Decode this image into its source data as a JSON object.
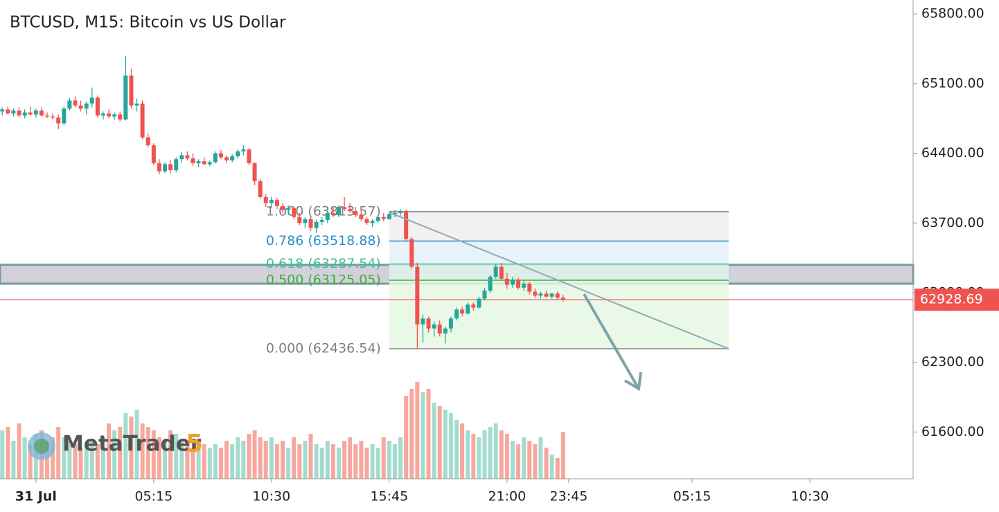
{
  "chart_data": {
    "type": "candlestick",
    "title": "BTCUSD, M15: Bitcoin vs US Dollar",
    "x": [
      -1.5,
      -1.25,
      -1,
      -0.75,
      -0.5,
      -0.25,
      0,
      0.25,
      0.5,
      0.75,
      1,
      1.25,
      1.5,
      1.75,
      2,
      2.25,
      2.5,
      2.75,
      3,
      3.25,
      3.5,
      3.75,
      4,
      4.25,
      4.5,
      4.75,
      5,
      5.25,
      5.5,
      5.75,
      6,
      6.25,
      6.5,
      6.75,
      7,
      7.25,
      7.5,
      7.75,
      8,
      8.25,
      8.5,
      8.75,
      9,
      9.25,
      9.5,
      9.75,
      10,
      10.25,
      10.5,
      10.75,
      11,
      11.25,
      11.5,
      11.75,
      12,
      12.25,
      12.5,
      12.75,
      13,
      13.25,
      13.5,
      13.75,
      14,
      14.25,
      14.5,
      14.75,
      15,
      15.25,
      15.5,
      15.75,
      16,
      16.25,
      16.5,
      16.75,
      17,
      17.25,
      17.5,
      17.75,
      18,
      18.25,
      18.5,
      18.75,
      19,
      19.25,
      19.5,
      19.75,
      20,
      20.25,
      20.5,
      20.75,
      21,
      21.25,
      21.5,
      21.75,
      22,
      22.25,
      22.5,
      22.75,
      23,
      23.25,
      23.5
    ],
    "open": [
      64820,
      64840,
      64800,
      64830,
      64780,
      64810,
      64790,
      64830,
      64780,
      64770,
      64760,
      64700,
      64850,
      64930,
      64880,
      64850,
      64900,
      64960,
      64780,
      64800,
      64770,
      64790,
      64740,
      65180,
      64880,
      64900,
      64560,
      64480,
      64300,
      64220,
      64290,
      64230,
      64340,
      64380,
      64350,
      64300,
      64320,
      64290,
      64310,
      64400,
      64360,
      64330,
      64370,
      64420,
      64440,
      64300,
      64120,
      63960,
      63900,
      63930,
      63870,
      63830,
      63850,
      63760,
      63700,
      63740,
      63650,
      63710,
      63730,
      63800,
      63780,
      63860,
      63840,
      63820,
      63780,
      63740,
      63700,
      63720,
      63760,
      63740,
      63790,
      63800,
      63820,
      63540,
      63260,
      62680,
      62740,
      62640,
      62680,
      62590,
      62640,
      62740,
      62830,
      62790,
      62880,
      62850,
      62940,
      63020,
      63160,
      63260,
      63140,
      63080,
      63130,
      63050,
      63090,
      63010,
      62970,
      62990,
      62960,
      62990,
      62950
    ],
    "high": [
      64860,
      64870,
      64850,
      64860,
      64840,
      64870,
      64850,
      64860,
      64810,
      64800,
      64790,
      64870,
      64960,
      64970,
      64930,
      64920,
      65060,
      64980,
      64820,
      64840,
      64810,
      64820,
      65380,
      65250,
      64950,
      64930,
      64600,
      64500,
      64340,
      64310,
      64330,
      64360,
      64410,
      64420,
      64400,
      64340,
      64360,
      64330,
      64420,
      64430,
      64380,
      64390,
      64440,
      64480,
      64450,
      64310,
      64140,
      63990,
      63960,
      63950,
      63900,
      63880,
      63870,
      63800,
      63760,
      63770,
      63730,
      63760,
      63820,
      63860,
      63880,
      63960,
      63900,
      63860,
      63830,
      63760,
      63740,
      63780,
      63800,
      63810,
      63830,
      63840,
      63830,
      63560,
      63300,
      62780,
      62760,
      62710,
      62720,
      62660,
      62760,
      62850,
      62860,
      62900,
      62900,
      62960,
      63050,
      63180,
      63290,
      63300,
      63200,
      63160,
      63150,
      63120,
      63110,
      63040,
      63010,
      63020,
      63000,
      63010,
      62980
    ],
    "low": [
      64780,
      64790,
      64770,
      64760,
      64750,
      64780,
      64760,
      64770,
      64750,
      64740,
      64640,
      64680,
      64830,
      64860,
      64820,
      64790,
      64860,
      64760,
      64740,
      64750,
      64740,
      64720,
      64730,
      64850,
      64820,
      64540,
      64460,
      64280,
      64190,
      64200,
      64200,
      64210,
      64300,
      64330,
      64270,
      64260,
      64280,
      64270,
      64300,
      64340,
      64300,
      64310,
      64350,
      64380,
      64280,
      64080,
      63940,
      63860,
      63850,
      63840,
      63800,
      63780,
      63740,
      63680,
      63650,
      63620,
      63600,
      63680,
      63700,
      63760,
      63760,
      63820,
      63800,
      63760,
      63720,
      63680,
      63660,
      63700,
      63720,
      63730,
      63760,
      63770,
      63520,
      63240,
      62436,
      62500,
      62600,
      62560,
      62560,
      62490,
      62600,
      62720,
      62760,
      62780,
      62820,
      62840,
      62920,
      63000,
      63140,
      63120,
      63040,
      63050,
      63030,
      63020,
      62980,
      62950,
      62940,
      62950,
      62940,
      62930,
      62910
    ],
    "close": [
      64840,
      64800,
      64830,
      64780,
      64810,
      64790,
      64830,
      64780,
      64770,
      64760,
      64700,
      64850,
      64930,
      64880,
      64850,
      64900,
      64960,
      64780,
      64800,
      64770,
      64790,
      64740,
      65180,
      64880,
      64900,
      64560,
      64480,
      64300,
      64220,
      64290,
      64230,
      64340,
      64380,
      64350,
      64300,
      64320,
      64290,
      64310,
      64400,
      64360,
      64330,
      64370,
      64420,
      64440,
      64300,
      64120,
      63960,
      63900,
      63930,
      63870,
      63830,
      63850,
      63760,
      63700,
      63740,
      63650,
      63710,
      63730,
      63800,
      63780,
      63860,
      63840,
      63820,
      63780,
      63740,
      63700,
      63720,
      63760,
      63740,
      63790,
      63800,
      63820,
      63540,
      63260,
      62680,
      62740,
      62640,
      62680,
      62590,
      62640,
      62740,
      62830,
      62790,
      62880,
      62850,
      62940,
      63020,
      63160,
      63260,
      63140,
      63080,
      63130,
      63050,
      63090,
      63010,
      62970,
      62990,
      62960,
      62990,
      62950,
      62928.69
    ],
    "volume": [
      70,
      75,
      55,
      80,
      60,
      50,
      65,
      70,
      55,
      60,
      75,
      60,
      55,
      50,
      45,
      50,
      55,
      50,
      60,
      80,
      70,
      75,
      95,
      90,
      100,
      80,
      75,
      70,
      60,
      55,
      70,
      65,
      55,
      50,
      45,
      55,
      50,
      45,
      50,
      45,
      55,
      50,
      60,
      55,
      65,
      70,
      60,
      55,
      60,
      50,
      55,
      45,
      60,
      50,
      55,
      65,
      50,
      45,
      55,
      50,
      45,
      55,
      60,
      50,
      55,
      45,
      50,
      45,
      60,
      55,
      50,
      60,
      120,
      130,
      140,
      125,
      130,
      110,
      105,
      100,
      95,
      85,
      80,
      70,
      65,
      60,
      70,
      75,
      80,
      70,
      65,
      55,
      50,
      60,
      55,
      50,
      60,
      45,
      35,
      30,
      68
    ],
    "up_color": "#26a69a",
    "down_color": "#ef5350",
    "up_volume_color": "#a3dcce",
    "down_volume_color": "#f7a89e",
    "xlim": [
      -1.6,
      39.1
    ],
    "xticks": [
      {
        "value": 0,
        "label": "31 Jul"
      },
      {
        "value": 5.25,
        "label": "05:15"
      },
      {
        "value": 10.5,
        "label": "10:30"
      },
      {
        "value": 15.75,
        "label": "15:45"
      },
      {
        "value": 21,
        "label": "21:00"
      },
      {
        "value": 23.75,
        "label": "23:45"
      },
      {
        "value": 29.25,
        "label": "05:15"
      },
      {
        "value": 34.5,
        "label": "10:30"
      }
    ],
    "ylim": [
      61130,
      65940
    ],
    "yticks": [
      {
        "value": 65800,
        "label": "65800.00"
      },
      {
        "value": 65100,
        "label": "65100.00"
      },
      {
        "value": 64400,
        "label": "64400.00"
      },
      {
        "value": 63700,
        "label": "63700.00"
      },
      {
        "value": 63000,
        "label": "63000.00"
      },
      {
        "value": 62300,
        "label": "62300.00"
      },
      {
        "value": 61600,
        "label": "61600.00"
      }
    ],
    "last_price": {
      "value": 62928.69,
      "color": "#ef5350"
    },
    "zone": {
      "range": [
        63090,
        63280
      ],
      "color": "#6f9ea0",
      "fill": "#d4d0da"
    },
    "trendline": {
      "x": [
        15.75,
        30.88
      ],
      "y": [
        63806,
        62436
      ],
      "color": "#8fa9b3"
    },
    "fibonacci": {
      "x": [
        15.75,
        30.88
      ],
      "levels": [
        {
          "value": 63813.57,
          "label": "1.000 (63813.57)",
          "color": "#808080",
          "fill": "#efefef"
        },
        {
          "value": 63518.88,
          "label": "0.786 (63518.88)",
          "color": "#2f8fc7",
          "fill": "#e4f1f8"
        },
        {
          "value": 63287.54,
          "label": "0.618 (63287.54)",
          "color": "#3cbf8e",
          "fill": "#dff5ec"
        },
        {
          "value": 63125.05,
          "label": "0.500 (63125.05)",
          "color": "#3ab03a",
          "fill": "#e6f8e3"
        },
        {
          "value": 62436.54,
          "label": "0.000 (62436.54)",
          "color": "#808080",
          "fill": null
        }
      ]
    },
    "watermark": {
      "text": "MetaTrader",
      "number": "5"
    }
  }
}
